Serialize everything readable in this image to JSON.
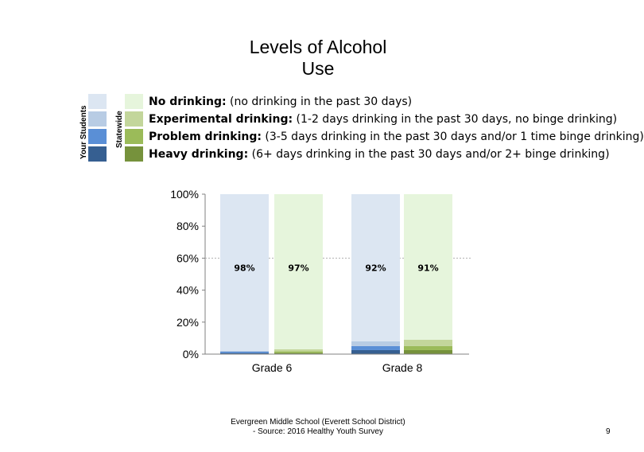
{
  "title_line1": "Levels of Alcohol",
  "title_line2": "Use",
  "legend": {
    "your_students_label": "Your Students",
    "statewide_label": "Statewide",
    "items": [
      {
        "bold": "No drinking:",
        "desc": " (no drinking in the past 30 days)",
        "school_color": "#dce6f2",
        "state_color": "#e6f5dc"
      },
      {
        "bold": "Experimental drinking:",
        "desc": " (1-2 days drinking in the past 30 days, no binge drinking)",
        "school_color": "#b8cce4",
        "state_color": "#c3d69b"
      },
      {
        "bold": "Problem drinking:",
        "desc": " (3-5 days drinking in the past 30 days and/or 1 time binge drinking)",
        "school_color": "#5a8fd6",
        "state_color": "#9bbb59"
      },
      {
        "bold": "Heavy drinking:",
        "desc": " (6+ days drinking in the past 30 days and/or 2+ binge drinking)",
        "school_color": "#365f91",
        "state_color": "#76923c"
      }
    ]
  },
  "chart_data": {
    "type": "bar",
    "stacked": true,
    "categories": [
      "Grade 6",
      "Grade 8"
    ],
    "ylim": [
      0,
      100
    ],
    "yticks": [
      "0%",
      "20%",
      "40%",
      "60%",
      "80%",
      "100%"
    ],
    "reference_line": 60,
    "bars": [
      {
        "category": "Grade 6",
        "group": "Your Students",
        "label": "98%",
        "values": [
          98,
          0.5,
          0.8,
          0.7
        ]
      },
      {
        "category": "Grade 6",
        "group": "Statewide",
        "label": "97%",
        "values": [
          97,
          1.3,
          0.9,
          0.8
        ]
      },
      {
        "category": "Grade 8",
        "group": "Your Students",
        "label": "92%",
        "values": [
          92,
          3,
          2.5,
          2.5
        ]
      },
      {
        "category": "Grade 8",
        "group": "Statewide",
        "label": "91%",
        "values": [
          91,
          4,
          2.5,
          2.5
        ]
      }
    ],
    "series_order": [
      "No drinking",
      "Experimental drinking",
      "Problem drinking",
      "Heavy drinking"
    ]
  },
  "footer_line1": "Evergreen Middle School (Everett School District)",
  "footer_line2": "- Source: 2016 Healthy  Youth Survey",
  "page_number": "9"
}
